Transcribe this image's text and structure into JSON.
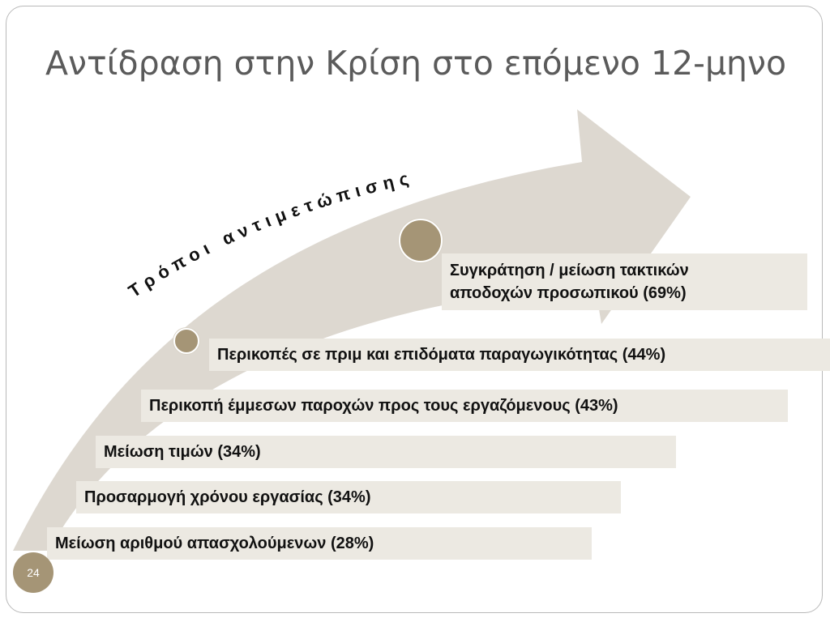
{
  "slide": {
    "title": "Αντίδραση στην Κρίση στο επόμενο 12-μηνο",
    "arrow_label": "Τρόποι αντιμετώπισης",
    "page_number": "24",
    "colors": {
      "arrow": "#ddd8d0",
      "box_fill": "#ece9e2",
      "dot": "#a59576",
      "title": "#5b5b5b",
      "text": "#111111"
    },
    "items": [
      {
        "label_line1": "Συγκράτηση / μείωση τακτικών",
        "label_line2": "αποδοχών προσωπικού  (69%)"
      },
      {
        "label": "Περικοπές σε πριμ και επιδόματα παραγωγικότητας (44%)"
      },
      {
        "label": "Περικοπή έμμεσων παροχών προς τους εργαζόμενους (43%)"
      },
      {
        "label": "Μείωση τιμών (34%)"
      },
      {
        "label": "Προσαρμογή χρόνου εργασίας (34%)"
      },
      {
        "label": "Μείωση αριθμού απασχολούμενων (28%)"
      }
    ]
  }
}
